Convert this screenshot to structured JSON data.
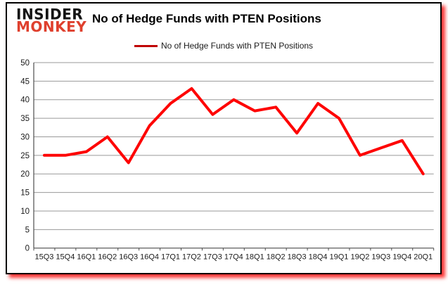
{
  "logo": {
    "line1": "INSIDER",
    "line2": "MONKEY",
    "line2_color": "#df402e"
  },
  "header": {
    "title": "No of Hedge Funds with PTEN Positions"
  },
  "legend": {
    "label": "No of Hedge Funds with PTEN Positions",
    "swatch_color": "#c00000"
  },
  "colors": {
    "series_red": "#fe0000",
    "logo_red": "#df402e",
    "gridline_gray": "#999999",
    "axis_gray": "#4d4d4d",
    "shadow_red": "#fd1414"
  },
  "chart_data": {
    "type": "line",
    "title": "No of Hedge Funds with PTEN Positions",
    "categories": [
      "15Q3",
      "15Q4",
      "16Q1",
      "16Q2",
      "16Q3",
      "16Q4",
      "17Q1",
      "17Q2",
      "17Q3",
      "17Q4",
      "18Q1",
      "18Q2",
      "18Q3",
      "18Q4",
      "19Q1",
      "19Q2",
      "19Q3",
      "19Q4",
      "20Q1"
    ],
    "series": [
      {
        "name": "No of Hedge Funds with PTEN Positions",
        "color": "#fe0000",
        "values": [
          25,
          25,
          26,
          30,
          23,
          33,
          39,
          43,
          36,
          40,
          37,
          38,
          31,
          39,
          35,
          25,
          27,
          29,
          20
        ]
      }
    ],
    "xlabel": "",
    "ylabel": "",
    "ylim": [
      0,
      50
    ],
    "ytick_step": 5,
    "yticks": [
      0,
      5,
      10,
      15,
      20,
      25,
      30,
      35,
      40,
      45,
      50
    ],
    "grid": true,
    "legend_position": "top-center"
  }
}
